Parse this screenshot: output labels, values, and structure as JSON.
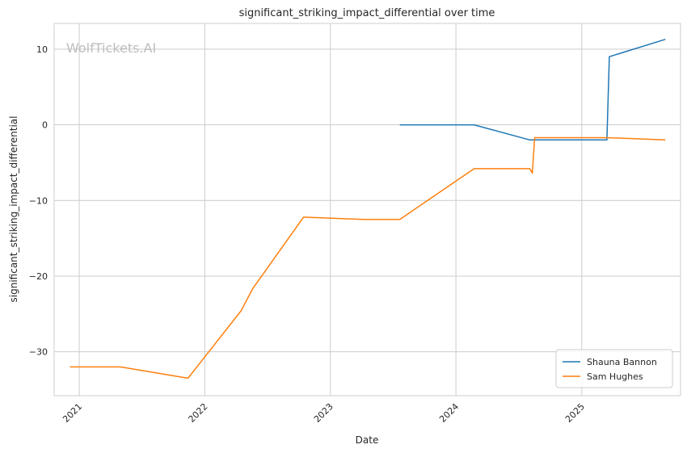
{
  "chart_data": {
    "type": "line",
    "title": "significant_striking_impact_differential over time",
    "xlabel": "Date",
    "ylabel": "significant_striking_impact_differential",
    "watermark": "WolfTickets.AI",
    "x_ticks": [
      "2021",
      "2022",
      "2023",
      "2024",
      "2025"
    ],
    "y_ticks": [
      10,
      0,
      -10,
      -20,
      -30
    ],
    "y_tick_labels": [
      "10",
      "0",
      "−10",
      "−20",
      "−30"
    ],
    "xlim": [
      "2020-10-20",
      "2025-10-15"
    ],
    "ylim": [
      -35.8,
      13.4
    ],
    "grid": true,
    "legend_position": "bottom-right",
    "series": [
      {
        "name": "Shauna Bannon",
        "color": "#1f77b4",
        "points": [
          {
            "x": "2023-07-22",
            "y": 0
          },
          {
            "x": "2024-02-23",
            "y": 0
          },
          {
            "x": "2024-08-03",
            "y": -2
          },
          {
            "x": "2025-03-15",
            "y": -2
          },
          {
            "x": "2025-03-22",
            "y": 9
          },
          {
            "x": "2025-09-01",
            "y": 11.3
          }
        ]
      },
      {
        "name": "Sam Hughes",
        "color": "#ff7f0e",
        "points": [
          {
            "x": "2020-12-05",
            "y": -32
          },
          {
            "x": "2021-05-01",
            "y": -32
          },
          {
            "x": "2021-11-13",
            "y": -33.5
          },
          {
            "x": "2022-04-16",
            "y": -24.6
          },
          {
            "x": "2022-05-21",
            "y": -21.6
          },
          {
            "x": "2022-10-15",
            "y": -12.2
          },
          {
            "x": "2023-04-08",
            "y": -12.5
          },
          {
            "x": "2023-07-22",
            "y": -12.5
          },
          {
            "x": "2024-02-23",
            "y": -5.8
          },
          {
            "x": "2024-08-03",
            "y": -5.8
          },
          {
            "x": "2024-08-10",
            "y": -6.4
          },
          {
            "x": "2024-08-17",
            "y": -1.7
          },
          {
            "x": "2025-03-15",
            "y": -1.7
          },
          {
            "x": "2025-09-01",
            "y": -2
          }
        ]
      }
    ]
  }
}
